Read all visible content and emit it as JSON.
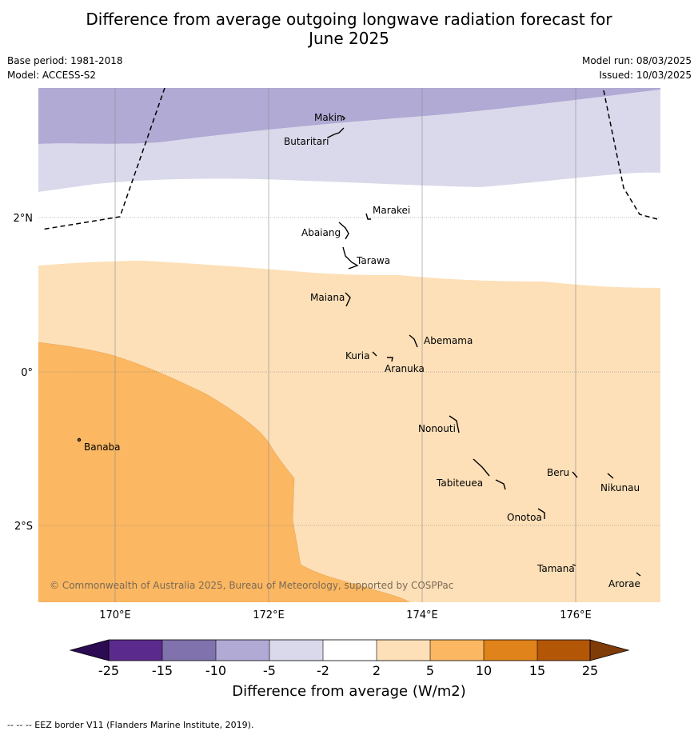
{
  "title": "Difference from average outgoing longwave radiation forecast for June 2025",
  "title_line1": "Difference from average outgoing longwave radiation forecast for",
  "title_line2": "June 2025",
  "base_period": "Base period: 1981-2018",
  "model": "Model: ACCESS-S2",
  "model_run": "Model run: 08/03/2025",
  "issued": "Issued: 10/03/2025",
  "copyright": "© Commonwealth of Australia 2025, Bureau of Meteorology, supported by COSPPac",
  "lon_labels": [
    "170°E",
    "172°E",
    "174°E",
    "176°E"
  ],
  "lat_labels": [
    "2°N",
    "0°",
    "2°S"
  ],
  "islands": [
    "Makin",
    "Butaritari",
    "Marakei",
    "Abaiang",
    "Tarawa",
    "Maiana",
    "Abemama",
    "Kuria",
    "Aranuka",
    "Banaba",
    "Nonouti",
    "Beru",
    "Tabiteuea",
    "Nikunau",
    "Onotoa",
    "Tamana",
    "Arorae"
  ],
  "colorbar": {
    "title": "Difference from average (W/m2)",
    "ticks": [
      "-25",
      "-15",
      "-10",
      "-5",
      "-2",
      "2",
      "5",
      "10",
      "15",
      "25"
    ],
    "colors": [
      "#5a2a8c",
      "#8073ad",
      "#b0aad4",
      "#d9d9eb",
      "#ffffff",
      "#fde0b8",
      "#fbb762",
      "#e1831b",
      "#b35706",
      "#2d0b53",
      "#7f3b08"
    ]
  },
  "footer": "--  --  -- EEZ border V11 (Flanders Marine Institute, 2019)."
}
